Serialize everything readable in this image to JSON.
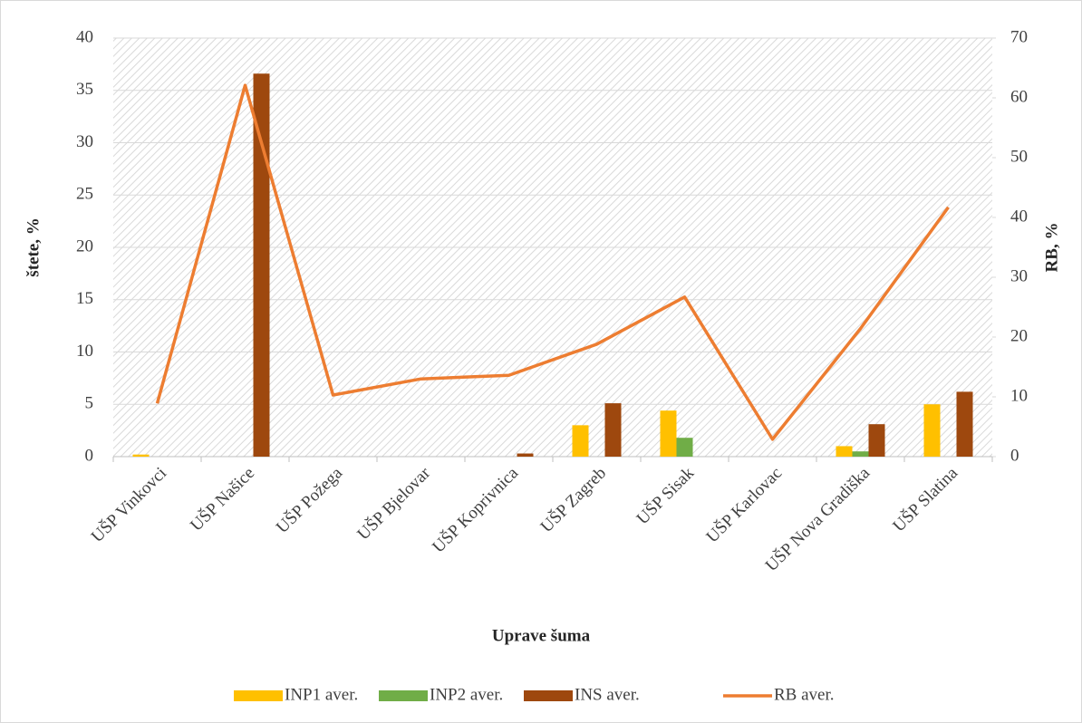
{
  "chart_data": {
    "type": "bar",
    "x_label": "Uprave šuma",
    "y_label": "štete, %",
    "y2_label": "RB, %",
    "categories": [
      "UŠP Vinkovci",
      "UŠP Našice",
      "UŠP Požega",
      "UŠP Bjelovar",
      "UŠP Koprivnica",
      "UŠP Zagreb",
      "UŠP Sisak",
      "UŠP Karlovac",
      "UŠP  Nova Gradiška",
      "UŠP Slatina"
    ],
    "series": [
      {
        "name": "INP1 aver.",
        "color": "#ffc000",
        "values": [
          0.2,
          0,
          0,
          0,
          0,
          3.0,
          4.4,
          0,
          1.0,
          5.0
        ]
      },
      {
        "name": "INP2 aver.",
        "color": "#70ad47",
        "values": [
          0,
          0,
          0,
          0,
          0,
          0,
          1.8,
          0,
          0.5,
          0
        ]
      },
      {
        "name": "INS aver.",
        "color": "#9e480e",
        "values": [
          0,
          36.6,
          0,
          0,
          0.3,
          5.1,
          0,
          0,
          3.1,
          6.2
        ]
      },
      {
        "name": "RB aver.",
        "color": "#ed7d31",
        "type": "line",
        "axis": "y2",
        "values": [
          8.9,
          62.1,
          10.3,
          13.0,
          13.6,
          18.8,
          26.7,
          2.9,
          21.4,
          41.7
        ]
      }
    ],
    "ylim": [
      0,
      40
    ],
    "yticks": [
      0,
      5,
      10,
      15,
      20,
      25,
      30,
      35,
      40
    ],
    "y2lim": [
      0,
      70
    ],
    "y2ticks": [
      0,
      10,
      20,
      30,
      40,
      50,
      60,
      70
    ],
    "grid": true,
    "legend": "bottom"
  }
}
